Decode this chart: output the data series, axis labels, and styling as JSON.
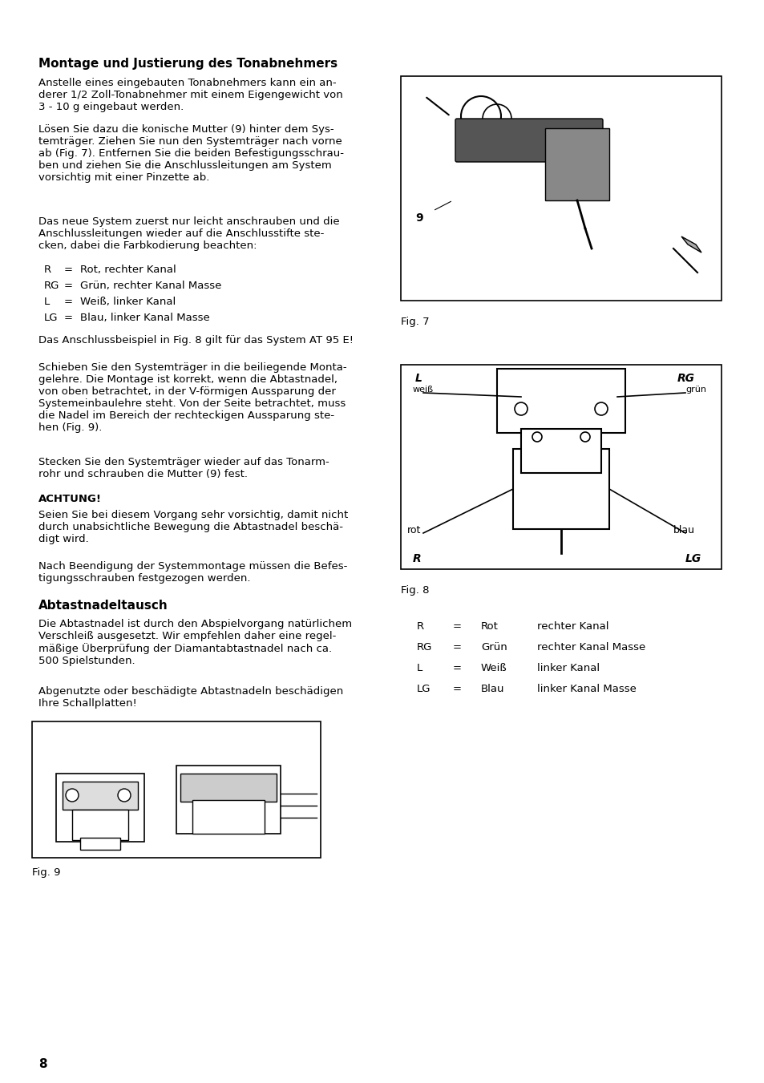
{
  "title": "Montage und Justierung des Tonabnehmers",
  "section2_title": "Abtastnadeltausch",
  "achtung_title": "ACHTUNG!",
  "bg_color": "#ffffff",
  "text_color": "#000000",
  "font_size_body": 9.5,
  "font_size_title": 11,
  "font_size_small": 9,
  "page_number": "8",
  "para1": "Anstelle eines eingebauten Tonabnehmers kann ein an-\nderer 1/2 Zoll-Tonabnehmer mit einem Eigengewicht von\n3 - 10 g eingebaut werden.",
  "para2": "Lösen Sie dazu die konische Mutter (9) hinter dem Sys-\ntemträger. Ziehen Sie nun den Systemträger nach vorne\nab (Fig. 7). Entfernen Sie die beiden Befestigungsschrau-\nben und ziehen Sie die Anschlussleitungen am System\nvorsichtig mit einer Pinzette ab.",
  "para3": "Das neue System zuerst nur leicht anschrauben und die\nAnschlussleitungen wieder auf die Anschlusstifte ste-\ncken, dabei die Farbkodierung beachten:",
  "color_table_left": [
    "R",
    "RG",
    "L",
    "LG"
  ],
  "color_table_eq": [
    "=",
    "=",
    "=",
    "="
  ],
  "color_table_right": [
    "Rot, rechter Kanal",
    "Grün, rechter Kanal Masse",
    "Weiß, linker Kanal",
    "Blau, linker Kanal Masse"
  ],
  "para4": "Das Anschlussbeispiel in Fig. 8 gilt für das System AT 95 E!",
  "para5": "Schieben Sie den Systemträger in die beiliegende Monta-\ngelehre. Die Montage ist korrekt, wenn die Abtastnadel,\nvon oben betrachtet, in der V-förmigen Aussparung der\nSystemeinbaulehre steht. Von der Seite betrachtet, muss\ndie Nadel im Bereich der rechteckigen Aussparung ste-\nhen (Fig. 9).",
  "para6": "Stecken Sie den Systemträger wieder auf das Tonarm-\nrohr und schrauben die Mutter (9) fest.",
  "achtung_text": "Seien Sie bei diesem Vorgang sehr vorsichtig, damit nicht\ndurch unabsichtliche Bewegung die Abtastnadel beschä-\ndigt wird.",
  "para7": "Nach Beendigung der Systemmontage müssen die Befes-\ntigungsschrauben festgezogen werden.",
  "para8": "Die Abtastnadel ist durch den Abspielvorgang natürlichem\nVerschleiß ausgesetzt. Wir empfehlen daher eine regel-\nmäßige Überprüfung der Diamantabtastnadel nach ca.\n500 Spielstunden.",
  "para9": "Abgenutzte oder beschädigte Abtastnadeln beschädigen\nIhre Schallplatten!",
  "fig7_label": "Fig. 7",
  "fig8_label": "Fig. 8",
  "fig9_label": "Fig. 9",
  "color_table2_left": [
    "R",
    "RG",
    "L",
    "LG"
  ],
  "color_table2_mid": [
    "=",
    "=",
    "=",
    "="
  ],
  "color_table2_color": [
    "Rot",
    "Grün",
    "Weiß",
    "Blau"
  ],
  "color_table2_right": [
    "rechter Kanal",
    "rechter Kanal Masse",
    "linker Kanal",
    "linker Kanal Masse"
  ]
}
